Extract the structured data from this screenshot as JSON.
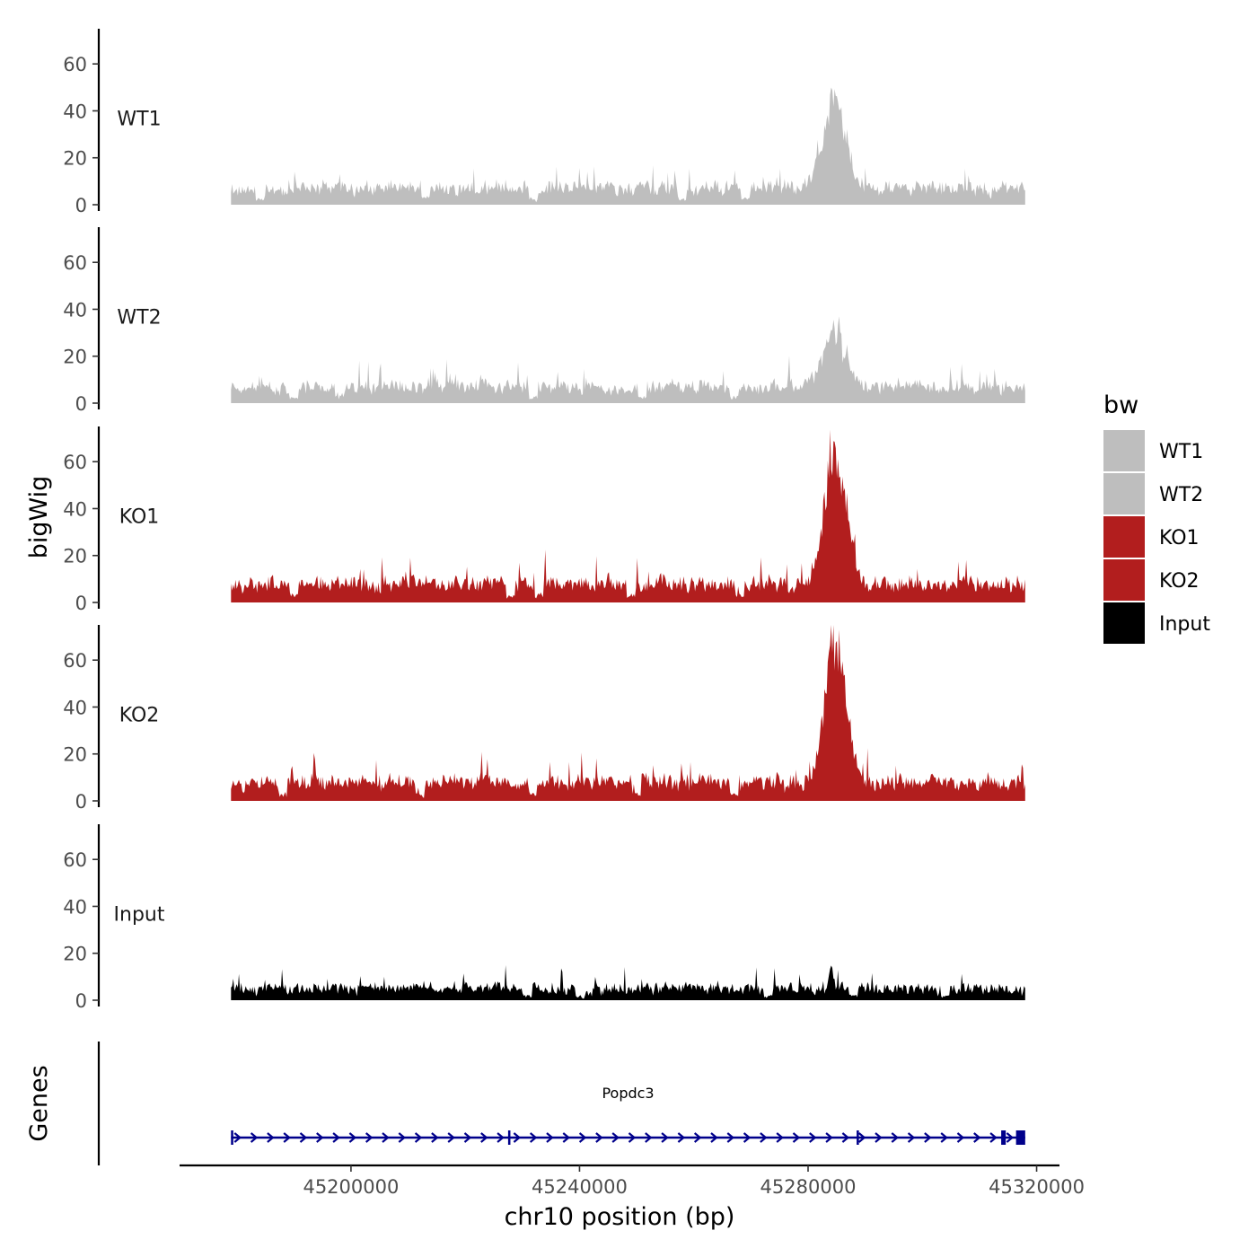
{
  "chart_data": {
    "type": "area",
    "chromosome": "chr10",
    "xlabel": "chr10 position (bp)",
    "ylabel": "bigWig",
    "genes_label": "Genes",
    "xlim": [
      45170000,
      45324000
    ],
    "data_range": [
      45179000,
      45318000
    ],
    "x_ticks": [
      45200000,
      45240000,
      45280000,
      45320000
    ],
    "ylim": [
      0,
      75
    ],
    "y_ticks": [
      0,
      20,
      40,
      60
    ],
    "legend": {
      "title": "bw",
      "entries": [
        {
          "label": "WT1",
          "color": "#bebebe"
        },
        {
          "label": "WT2",
          "color": "#bebebe"
        },
        {
          "label": "KO1",
          "color": "#b21e1e"
        },
        {
          "label": "KO2",
          "color": "#b21e1e"
        },
        {
          "label": "Input",
          "color": "#000000"
        }
      ]
    },
    "series": [
      {
        "name": "WT1",
        "color": "#bebebe",
        "baseline": 7,
        "noise": 6,
        "peak_center": 45284500,
        "peak_width": 2800,
        "peak_height": 36,
        "seed": 11,
        "dips": [
          45184000,
          45213000,
          45232000,
          45258000,
          45269000
        ]
      },
      {
        "name": "WT2",
        "color": "#bebebe",
        "baseline": 7,
        "noise": 6,
        "peak_center": 45284500,
        "peak_width": 2800,
        "peak_height": 22,
        "seed": 23,
        "dips": [
          45190000,
          45198000,
          45232000,
          45251000,
          45267000
        ]
      },
      {
        "name": "KO1",
        "color": "#b21e1e",
        "baseline": 8,
        "noise": 7,
        "peak_center": 45284800,
        "peak_width": 2600,
        "peak_height": 58,
        "seed": 37,
        "dips": [
          45190000,
          45228000,
          45233000,
          45249000,
          45268000
        ]
      },
      {
        "name": "KO2",
        "color": "#b21e1e",
        "baseline": 8,
        "noise": 7,
        "peak_center": 45284800,
        "peak_width": 2600,
        "peak_height": 60,
        "seed": 53,
        "dips": [
          45188000,
          45212000,
          45232000,
          45250000,
          45267000
        ]
      },
      {
        "name": "Input",
        "color": "#000000",
        "baseline": 5,
        "noise": 5,
        "peak_center": 45284000,
        "peak_width": 600,
        "peak_height": 8,
        "seed": 71,
        "dips": [
          45231000,
          45240000,
          45273000,
          45288000,
          45304000
        ]
      }
    ],
    "genes": [
      {
        "name": "Popdc3",
        "start": 45179000,
        "end": 45318000,
        "strand": "+",
        "color": "#00008b",
        "exons": [
          [
            45179000,
            45179400
          ],
          [
            45227500,
            45227900
          ],
          [
            45288500,
            45288900
          ],
          [
            45313800,
            45314600
          ],
          [
            45316400,
            45318000
          ]
        ]
      }
    ]
  }
}
